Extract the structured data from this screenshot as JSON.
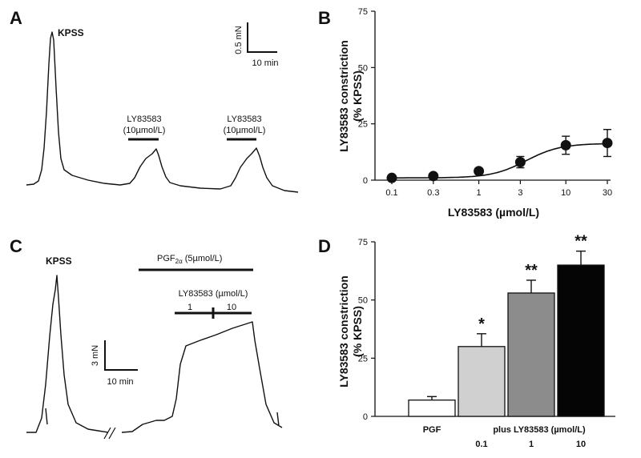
{
  "panels": {
    "A": {
      "label": "A",
      "trace_labels": {
        "kpss": "KPSS",
        "drug1_line1": "LY83583",
        "drug1_line2": "(10µmol/L)",
        "drug2_line1": "LY83583",
        "drug2_line2": "(10µmol/L)"
      },
      "scale": {
        "y": "0.5 mN",
        "x": "10 min"
      }
    },
    "C": {
      "label": "C",
      "trace_labels": {
        "kpss": "KPSS",
        "pgf": "PGF",
        "pgf_sub": "2α",
        "pgf_conc": " (5µmol/L)",
        "drug": "LY83583 (µmol/L)",
        "conc1": "1",
        "conc2": "10"
      },
      "scale": {
        "y": "3 mN",
        "x": "10 min"
      }
    },
    "B": {
      "label": "B"
    },
    "D": {
      "label": "D",
      "plus_label": "plus LY83583 (µmol/L)"
    }
  },
  "chart_data": [
    {
      "panel": "B",
      "type": "scatter",
      "title": "",
      "xlabel": "LY83583 (µmol/L)",
      "ylabel_line1": "LY83583 constriction",
      "ylabel_line2": "(% KPSS)",
      "xscale": "log",
      "xticks": [
        "0.1",
        "0.3",
        "1",
        "3",
        "10",
        "30"
      ],
      "yticks": [
        "0",
        "25",
        "50",
        "75"
      ],
      "ylim": [
        0,
        75
      ],
      "x": [
        0.1,
        0.3,
        1,
        3,
        10,
        30
      ],
      "y": [
        1.0,
        1.8,
        4.0,
        8.0,
        15.5,
        16.5
      ],
      "err": [
        0.8,
        0.8,
        1.0,
        2.5,
        4.0,
        6.0
      ],
      "fit": {
        "bottom": 1.0,
        "top": 16.3,
        "ec50": 3.5,
        "hill": 2.2
      }
    },
    {
      "panel": "D",
      "type": "bar",
      "title": "",
      "ylabel_line1": "LY83583 constriction",
      "ylabel_line2": "(% KPSS)",
      "yticks": [
        "0",
        "25",
        "50",
        "75"
      ],
      "ylim": [
        0,
        75
      ],
      "categories": [
        "PGF",
        "0.1",
        "1",
        "10"
      ],
      "values": [
        7,
        30,
        53,
        65
      ],
      "err": [
        1.5,
        5.5,
        5.5,
        6.0
      ],
      "colors": [
        "#ffffff",
        "#d0d0d0",
        "#8c8c8c",
        "#050505"
      ],
      "significance": [
        "",
        "*",
        "**",
        "**"
      ]
    }
  ]
}
